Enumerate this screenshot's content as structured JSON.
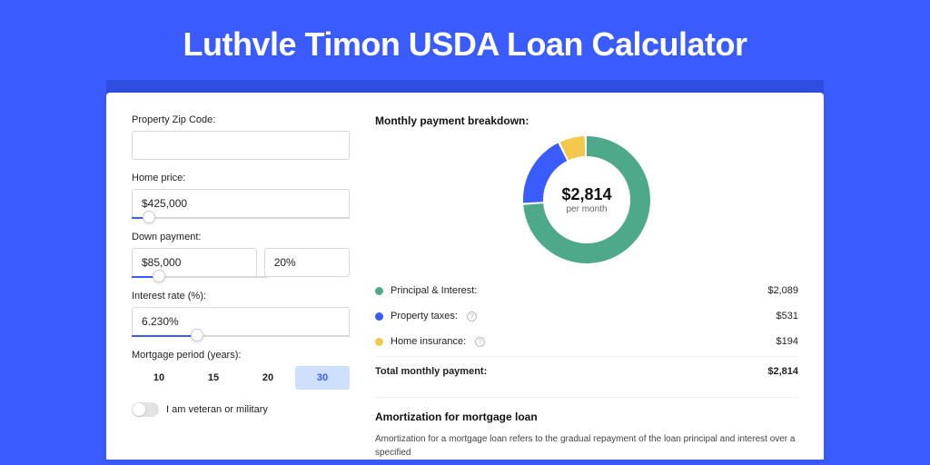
{
  "title": "Luthvle Timon USDA Loan Calculator",
  "form": {
    "zip": {
      "label": "Property Zip Code:",
      "value": ""
    },
    "home_price": {
      "label": "Home price:",
      "value": "$425,000",
      "slider_pct": 8
    },
    "down_payment": {
      "label": "Down payment:",
      "amount": "$85,000",
      "percent": "20%",
      "slider_pct": 20
    },
    "interest_rate": {
      "label": "Interest rate (%):",
      "value": "6.230%",
      "slider_pct": 30
    },
    "period": {
      "label": "Mortgage period (years):",
      "options": [
        "10",
        "15",
        "20",
        "30"
      ],
      "active_index": 3
    },
    "veteran": {
      "label": "I am veteran or military",
      "on": false
    }
  },
  "breakdown": {
    "title": "Monthly payment breakdown:",
    "center_amount": "$2,814",
    "center_sub": "per month",
    "donut": {
      "slices": [
        {
          "color": "#4ea98b",
          "value": 2089
        },
        {
          "color": "#3a5cff",
          "value": 531
        },
        {
          "color": "#f2c94c",
          "value": 194
        }
      ],
      "thickness": 22,
      "radius": 70
    },
    "rows": [
      {
        "dot": "#4ea98b",
        "label": "Principal & Interest:",
        "value": "$2,089",
        "info": false
      },
      {
        "dot": "#3a5cff",
        "label": "Property taxes:",
        "value": "$531",
        "info": true
      },
      {
        "dot": "#f2c94c",
        "label": "Home insurance:",
        "value": "$194",
        "info": true
      }
    ],
    "total": {
      "label": "Total monthly payment:",
      "value": "$2,814"
    }
  },
  "amortization": {
    "title": "Amortization for mortgage loan",
    "text": "Amortization for a mortgage loan refers to the gradual repayment of the loan principal and interest over a specified"
  }
}
